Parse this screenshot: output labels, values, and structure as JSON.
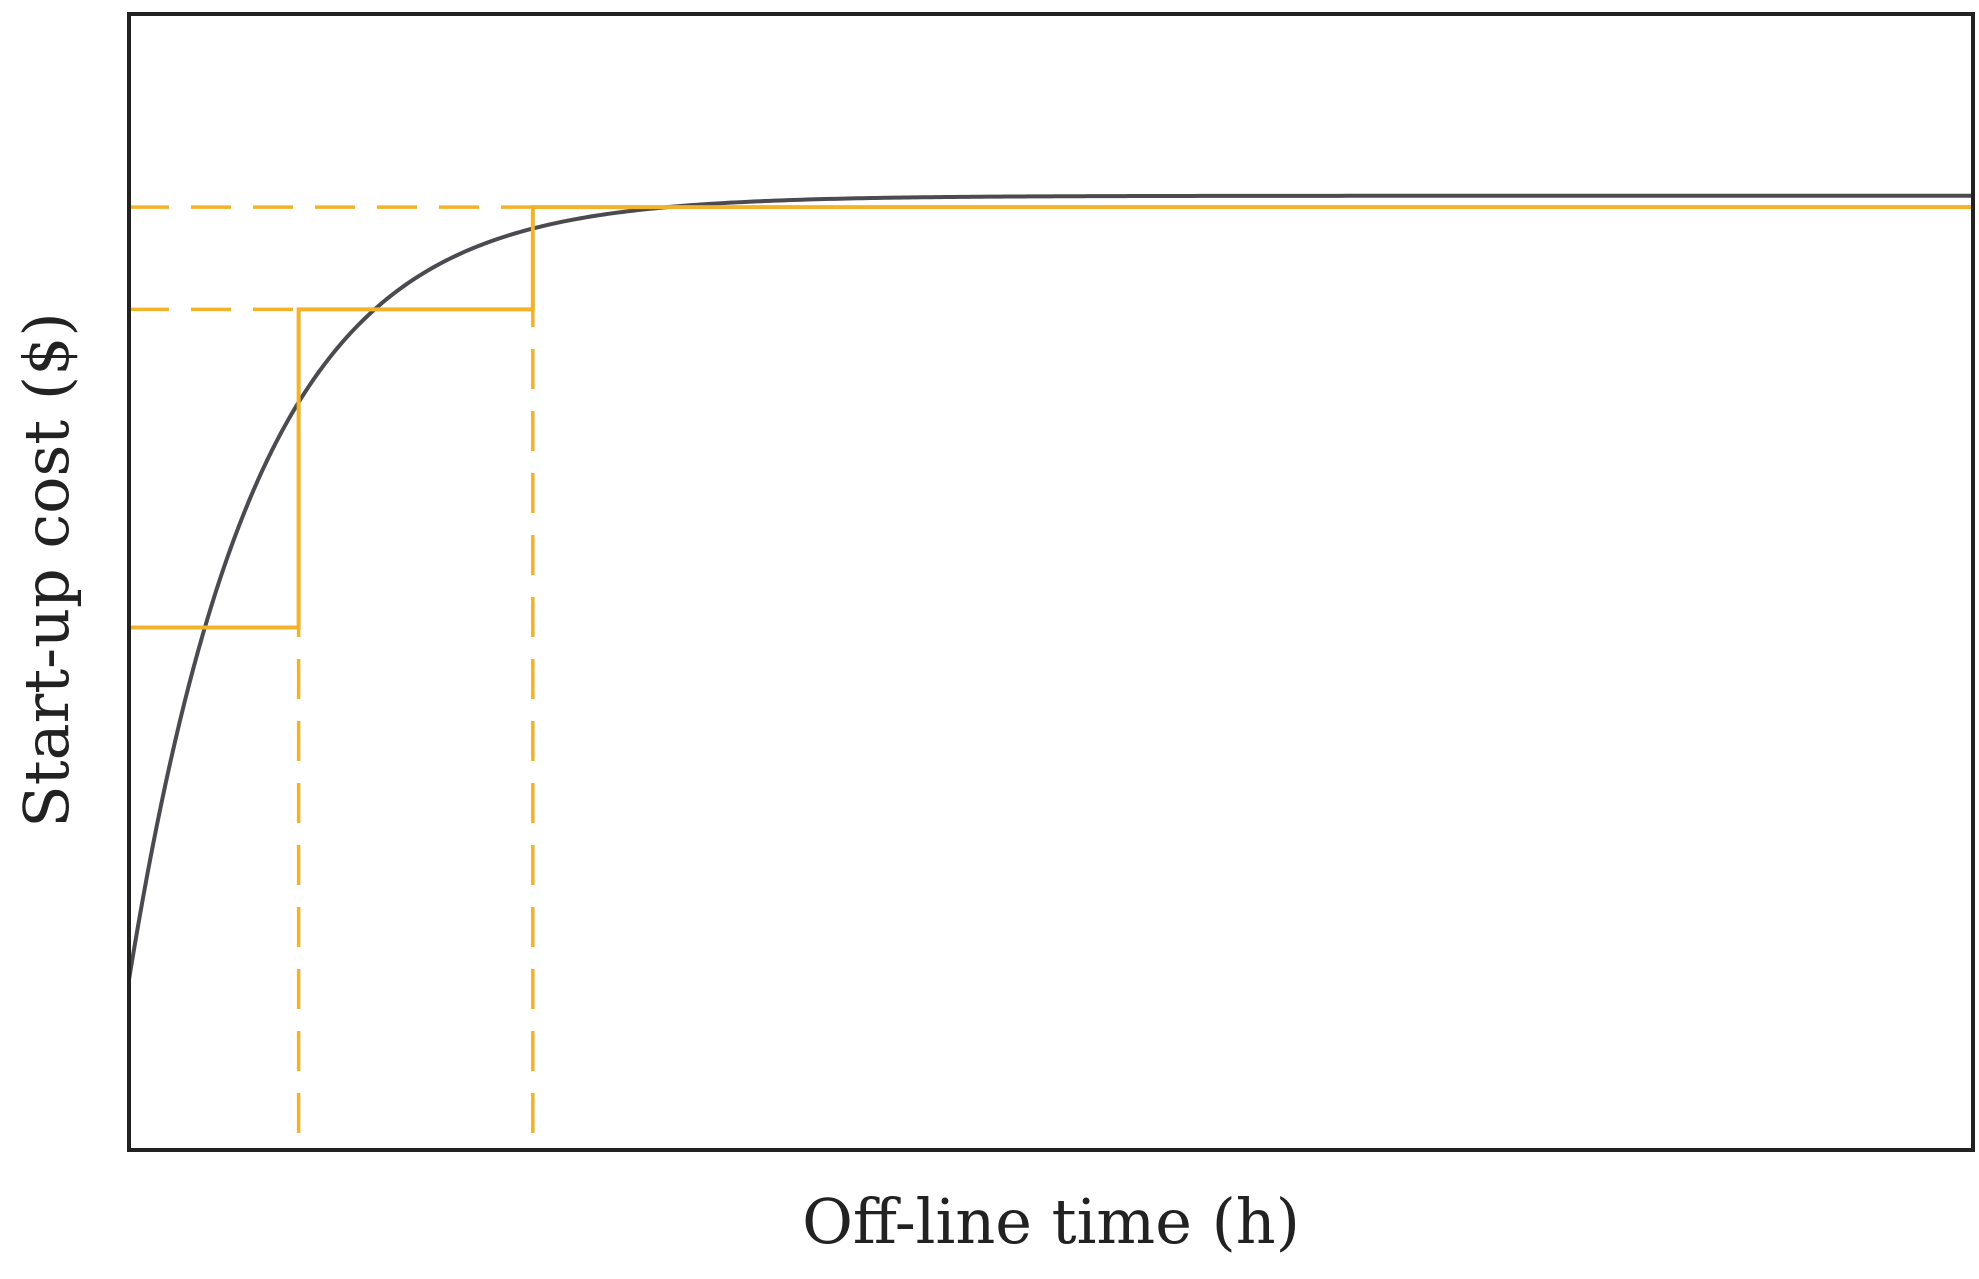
{
  "chart_data": {
    "type": "line",
    "title": "",
    "xlabel": "Off-line time (h)",
    "ylabel": "Start-up cost ($)",
    "xlim": [
      0,
      1
    ],
    "ylim": [
      0,
      1
    ],
    "grid": false,
    "legend": "none",
    "colors": {
      "curve": "#4a4a50",
      "step": "#f2b22a",
      "frame": "#222222"
    },
    "series": [
      {
        "kind": "exponential-curve",
        "start_value": 0.15,
        "final_value": 0.84,
        "rate": 14.5,
        "x_end": 1.0
      },
      {
        "kind": "step",
        "points": [
          [
            0.0,
            0.46
          ],
          [
            0.092,
            0.46
          ],
          [
            0.092,
            0.74
          ],
          [
            0.219,
            0.74
          ],
          [
            0.219,
            0.83
          ],
          [
            1.0,
            0.83
          ]
        ]
      }
    ],
    "reference_lines": [
      {
        "orientation": "horizontal",
        "value": 0.74,
        "from": 0.0,
        "to": 0.092,
        "style": "dashed"
      },
      {
        "orientation": "horizontal",
        "value": 0.83,
        "from": 0.0,
        "to": 0.219,
        "style": "dashed"
      },
      {
        "orientation": "vertical",
        "value": 0.092,
        "from": 0.015,
        "to": 0.46,
        "style": "dashed"
      },
      {
        "orientation": "vertical",
        "value": 0.219,
        "from": 0.015,
        "to": 0.74,
        "style": "dashed"
      }
    ]
  }
}
